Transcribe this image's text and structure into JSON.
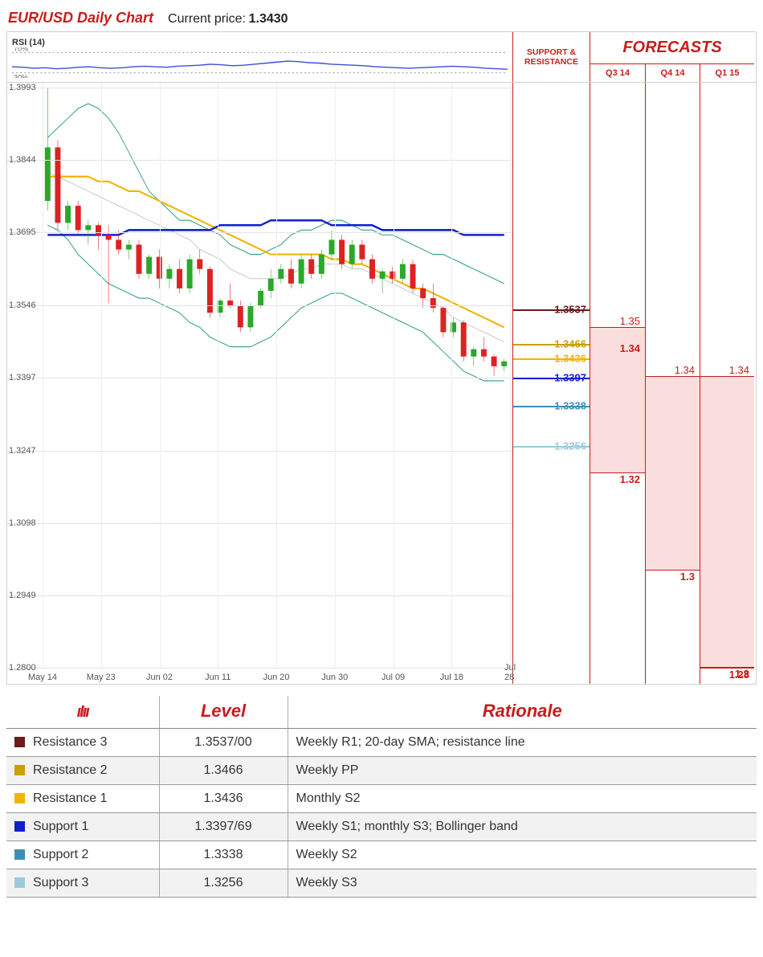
{
  "header": {
    "title": "EUR/USD Daily Chart",
    "current_price_label": "Current price:",
    "current_price": "1.3430"
  },
  "colors": {
    "brand_red": "#c91c1c",
    "grid": "#e3e3e3",
    "rsi_line": "#3b4fd6",
    "candle_up": "#2aa82a",
    "candle_down": "#d22",
    "bb_upper": "#2f9e84",
    "bb_lower": "#2f9e84",
    "sma20": "#bfbfbf",
    "sma50": "#f2b400",
    "sma200": "#1020d0"
  },
  "rsi": {
    "label": "RSI (14)",
    "upper": 70,
    "lower": 30,
    "ymin": 20,
    "ymax": 80,
    "upper_label": "70%",
    "lower_label": "30%",
    "series": [
      42,
      41,
      39,
      40,
      38,
      39,
      41,
      42,
      40,
      39,
      40,
      42,
      43,
      42,
      41,
      43,
      44,
      45,
      47,
      46,
      44,
      45,
      47,
      49,
      51,
      53,
      52,
      50,
      49,
      47,
      46,
      45,
      44,
      42,
      41,
      40,
      39,
      40,
      41,
      42,
      43,
      42,
      41,
      39,
      38,
      37
    ]
  },
  "chart": {
    "ymin": 1.28,
    "ymax": 1.3993,
    "y_ticks": [
      1.3993,
      1.3844,
      1.3695,
      1.3546,
      1.3397,
      1.3247,
      1.3098,
      1.2949,
      1.28
    ],
    "x_labels": [
      "May 14",
      "May 23",
      "Jun 02",
      "Jun 11",
      "Jun 20",
      "Jun 30",
      "Jul 09",
      "Jul 18",
      "Jul 28"
    ],
    "candles": [
      {
        "o": 1.376,
        "h": 1.3993,
        "l": 1.374,
        "c": 1.387
      },
      {
        "o": 1.387,
        "h": 1.3885,
        "l": 1.37,
        "c": 1.3715
      },
      {
        "o": 1.3715,
        "h": 1.376,
        "l": 1.37,
        "c": 1.375
      },
      {
        "o": 1.375,
        "h": 1.376,
        "l": 1.369,
        "c": 1.37
      },
      {
        "o": 1.37,
        "h": 1.372,
        "l": 1.367,
        "c": 1.371
      },
      {
        "o": 1.371,
        "h": 1.3715,
        "l": 1.366,
        "c": 1.369
      },
      {
        "o": 1.369,
        "h": 1.371,
        "l": 1.355,
        "c": 1.368
      },
      {
        "o": 1.368,
        "h": 1.37,
        "l": 1.365,
        "c": 1.366
      },
      {
        "o": 1.366,
        "h": 1.368,
        "l": 1.364,
        "c": 1.367
      },
      {
        "o": 1.367,
        "h": 1.368,
        "l": 1.36,
        "c": 1.361
      },
      {
        "o": 1.361,
        "h": 1.365,
        "l": 1.36,
        "c": 1.3645
      },
      {
        "o": 1.3645,
        "h": 1.366,
        "l": 1.358,
        "c": 1.36
      },
      {
        "o": 1.36,
        "h": 1.363,
        "l": 1.358,
        "c": 1.362
      },
      {
        "o": 1.362,
        "h": 1.364,
        "l": 1.357,
        "c": 1.358
      },
      {
        "o": 1.358,
        "h": 1.365,
        "l": 1.357,
        "c": 1.364
      },
      {
        "o": 1.364,
        "h": 1.366,
        "l": 1.361,
        "c": 1.362
      },
      {
        "o": 1.362,
        "h": 1.3625,
        "l": 1.352,
        "c": 1.353
      },
      {
        "o": 1.353,
        "h": 1.356,
        "l": 1.352,
        "c": 1.3555
      },
      {
        "o": 1.3555,
        "h": 1.359,
        "l": 1.354,
        "c": 1.3545
      },
      {
        "o": 1.3545,
        "h": 1.3555,
        "l": 1.349,
        "c": 1.35
      },
      {
        "o": 1.35,
        "h": 1.355,
        "l": 1.349,
        "c": 1.3545
      },
      {
        "o": 1.3545,
        "h": 1.358,
        "l": 1.354,
        "c": 1.3575
      },
      {
        "o": 1.3575,
        "h": 1.362,
        "l": 1.356,
        "c": 1.36
      },
      {
        "o": 1.36,
        "h": 1.363,
        "l": 1.359,
        "c": 1.362
      },
      {
        "o": 1.362,
        "h": 1.364,
        "l": 1.358,
        "c": 1.359
      },
      {
        "o": 1.359,
        "h": 1.365,
        "l": 1.358,
        "c": 1.364
      },
      {
        "o": 1.364,
        "h": 1.365,
        "l": 1.36,
        "c": 1.361
      },
      {
        "o": 1.361,
        "h": 1.366,
        "l": 1.36,
        "c": 1.365
      },
      {
        "o": 1.365,
        "h": 1.37,
        "l": 1.364,
        "c": 1.368
      },
      {
        "o": 1.368,
        "h": 1.369,
        "l": 1.362,
        "c": 1.363
      },
      {
        "o": 1.363,
        "h": 1.368,
        "l": 1.362,
        "c": 1.367
      },
      {
        "o": 1.367,
        "h": 1.368,
        "l": 1.363,
        "c": 1.364
      },
      {
        "o": 1.364,
        "h": 1.365,
        "l": 1.359,
        "c": 1.36
      },
      {
        "o": 1.36,
        "h": 1.362,
        "l": 1.357,
        "c": 1.3615
      },
      {
        "o": 1.3615,
        "h": 1.3625,
        "l": 1.359,
        "c": 1.36
      },
      {
        "o": 1.36,
        "h": 1.364,
        "l": 1.359,
        "c": 1.363
      },
      {
        "o": 1.363,
        "h": 1.364,
        "l": 1.357,
        "c": 1.358
      },
      {
        "o": 1.358,
        "h": 1.359,
        "l": 1.354,
        "c": 1.356
      },
      {
        "o": 1.356,
        "h": 1.359,
        "l": 1.353,
        "c": 1.354
      },
      {
        "o": 1.354,
        "h": 1.3545,
        "l": 1.348,
        "c": 1.349
      },
      {
        "o": 1.349,
        "h": 1.352,
        "l": 1.348,
        "c": 1.351
      },
      {
        "o": 1.351,
        "h": 1.3515,
        "l": 1.343,
        "c": 1.344
      },
      {
        "o": 1.344,
        "h": 1.346,
        "l": 1.342,
        "c": 1.3455
      },
      {
        "o": 1.3455,
        "h": 1.348,
        "l": 1.343,
        "c": 1.344
      },
      {
        "o": 1.344,
        "h": 1.3445,
        "l": 1.34,
        "c": 1.342
      },
      {
        "o": 1.342,
        "h": 1.3435,
        "l": 1.341,
        "c": 1.343
      }
    ],
    "bb_upper": [
      1.389,
      1.391,
      1.393,
      1.395,
      1.396,
      1.395,
      1.393,
      1.39,
      1.386,
      1.382,
      1.378,
      1.376,
      1.374,
      1.372,
      1.372,
      1.371,
      1.37,
      1.369,
      1.367,
      1.366,
      1.365,
      1.365,
      1.366,
      1.367,
      1.369,
      1.37,
      1.37,
      1.371,
      1.372,
      1.372,
      1.371,
      1.37,
      1.37,
      1.369,
      1.369,
      1.368,
      1.367,
      1.366,
      1.365,
      1.365,
      1.364,
      1.363,
      1.362,
      1.361,
      1.36,
      1.359
    ],
    "bb_lower": [
      1.371,
      1.37,
      1.368,
      1.365,
      1.363,
      1.361,
      1.359,
      1.358,
      1.357,
      1.356,
      1.356,
      1.355,
      1.354,
      1.353,
      1.351,
      1.35,
      1.348,
      1.347,
      1.346,
      1.346,
      1.346,
      1.347,
      1.348,
      1.35,
      1.352,
      1.354,
      1.355,
      1.356,
      1.357,
      1.357,
      1.356,
      1.355,
      1.354,
      1.353,
      1.352,
      1.351,
      1.35,
      1.349,
      1.347,
      1.345,
      1.343,
      1.341,
      1.34,
      1.339,
      1.339,
      1.339
    ],
    "sma20": [
      1.382,
      1.381,
      1.38,
      1.379,
      1.378,
      1.377,
      1.376,
      1.375,
      1.374,
      1.373,
      1.372,
      1.371,
      1.37,
      1.369,
      1.368,
      1.366,
      1.365,
      1.364,
      1.362,
      1.361,
      1.36,
      1.36,
      1.36,
      1.36,
      1.361,
      1.362,
      1.362,
      1.363,
      1.363,
      1.363,
      1.362,
      1.362,
      1.361,
      1.36,
      1.359,
      1.358,
      1.357,
      1.356,
      1.355,
      1.354,
      1.352,
      1.351,
      1.35,
      1.349,
      1.348,
      1.347
    ],
    "sma50": [
      1.381,
      1.381,
      1.381,
      1.381,
      1.381,
      1.38,
      1.38,
      1.379,
      1.378,
      1.378,
      1.377,
      1.376,
      1.375,
      1.374,
      1.373,
      1.372,
      1.371,
      1.37,
      1.369,
      1.368,
      1.367,
      1.366,
      1.365,
      1.365,
      1.365,
      1.365,
      1.365,
      1.365,
      1.364,
      1.364,
      1.363,
      1.363,
      1.362,
      1.361,
      1.36,
      1.359,
      1.358,
      1.358,
      1.357,
      1.356,
      1.355,
      1.354,
      1.353,
      1.352,
      1.351,
      1.35
    ],
    "sma200": [
      1.369,
      1.369,
      1.369,
      1.369,
      1.369,
      1.369,
      1.369,
      1.369,
      1.37,
      1.37,
      1.37,
      1.37,
      1.37,
      1.37,
      1.37,
      1.37,
      1.37,
      1.371,
      1.371,
      1.371,
      1.371,
      1.371,
      1.372,
      1.372,
      1.372,
      1.372,
      1.372,
      1.372,
      1.371,
      1.371,
      1.371,
      1.371,
      1.371,
      1.37,
      1.37,
      1.37,
      1.37,
      1.37,
      1.37,
      1.37,
      1.37,
      1.369,
      1.369,
      1.369,
      1.369,
      1.369
    ]
  },
  "sr_lines": [
    {
      "label": "1.3537",
      "value": 1.3537,
      "color": "#6b1a1a"
    },
    {
      "label": "1.3466",
      "value": 1.3466,
      "color": "#c9a000"
    },
    {
      "label": "1.3436",
      "value": 1.3436,
      "color": "#f2b400"
    },
    {
      "label": "1.3397",
      "value": 1.3397,
      "color": "#1020d0"
    },
    {
      "label": "1.3338",
      "value": 1.3338,
      "color": "#3f8fb5"
    },
    {
      "label": "1.3256",
      "value": 1.3256,
      "color": "#9cc9de"
    }
  ],
  "sr_header": "SUPPORT & RESISTANCE",
  "forecasts": {
    "title": "FORECASTS",
    "periods": [
      "Q3 14",
      "Q4 14",
      "Q1 15"
    ],
    "bands": [
      {
        "hi": 1.35,
        "lo": 1.32,
        "hi_label": "1.35",
        "lo_label": "1.32",
        "mid_label": "1.34"
      },
      {
        "hi": 1.34,
        "lo": 1.3,
        "hi_label": "1.34",
        "lo_label": "1.3"
      },
      {
        "hi": 1.34,
        "lo": 1.28,
        "hi_label": "1.34",
        "lo_label": "1.3",
        "extra_lo": 1.28,
        "extra_lo_label": "1.28"
      }
    ]
  },
  "table": {
    "headers": [
      "",
      "Level",
      "Rationale"
    ],
    "rows": [
      {
        "swatch": "#6b1a1a",
        "name": "Resistance 3",
        "level": "1.3537/00",
        "rationale": "Weekly R1; 20-day SMA; resistance line"
      },
      {
        "swatch": "#c9a000",
        "name": "Resistance 2",
        "level": "1.3466",
        "rationale": "Weekly PP"
      },
      {
        "swatch": "#f2b400",
        "name": "Resistance 1",
        "level": "1.3436",
        "rationale": "Monthly S2"
      },
      {
        "swatch": "#1020d0",
        "name": "Support 1",
        "level": "1.3397/69",
        "rationale": "Weekly S1; monthly S3; Bollinger band"
      },
      {
        "swatch": "#3f8fb5",
        "name": "Support 2",
        "level": "1.3338",
        "rationale": "Weekly S2"
      },
      {
        "swatch": "#9cc9de",
        "name": "Support 3",
        "level": "1.3256",
        "rationale": "Weekly S3"
      }
    ]
  }
}
